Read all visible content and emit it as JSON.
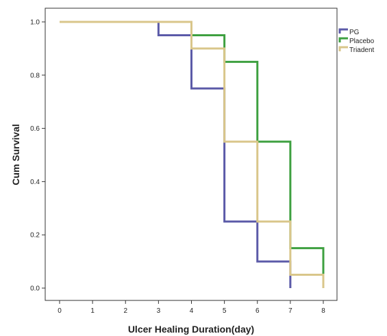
{
  "chart_data": {
    "type": "line",
    "step": true,
    "title": "",
    "xlabel": "Ulcer Healing Duration(day)",
    "ylabel": "Cum Survival",
    "xlim": [
      0,
      8
    ],
    "ylim": [
      0,
      1
    ],
    "x_ticks": [
      "0",
      "1",
      "2",
      "3",
      "4",
      "5",
      "6",
      "7",
      "8"
    ],
    "y_ticks": [
      "0.0",
      "0.2",
      "0.4",
      "0.6",
      "0.8",
      "1.0"
    ],
    "grid": false,
    "legend_position": "top-right",
    "series": [
      {
        "name": "PG",
        "color": "#5b5aa8",
        "x": [
          0,
          3,
          4,
          5,
          6,
          7
        ],
        "y": [
          1.0,
          0.95,
          0.75,
          0.25,
          0.1,
          0.0
        ]
      },
      {
        "name": "Placebo",
        "color": "#3ea040",
        "x": [
          0,
          4,
          5,
          6,
          7,
          8
        ],
        "y": [
          1.0,
          0.95,
          0.85,
          0.55,
          0.15,
          0.0
        ]
      },
      {
        "name": "Triadent",
        "color": "#d9c68a",
        "x": [
          0,
          4,
          5,
          6,
          7,
          8
        ],
        "y": [
          1.0,
          0.9,
          0.55,
          0.25,
          0.05,
          0.0
        ]
      }
    ]
  }
}
